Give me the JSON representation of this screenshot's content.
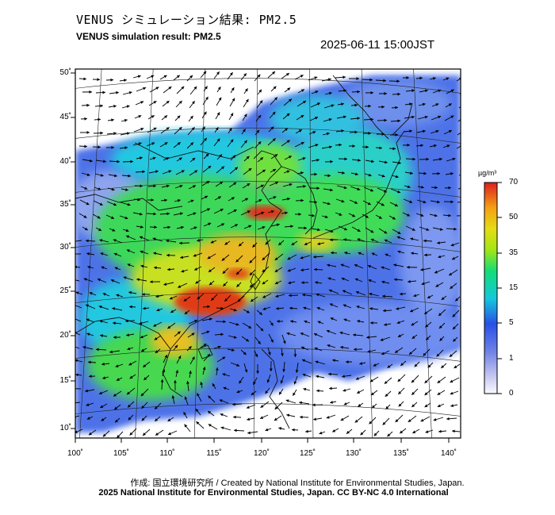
{
  "header": {
    "title_jp": "VENUS シミュレーション結果: PM2.5",
    "title_en": "VENUS simulation result: PM2.5",
    "timestamp": "2025-06-11 15:00JST"
  },
  "map": {
    "lat_labels": [
      "50˚",
      "45˚",
      "40˚",
      "35˚",
      "30˚",
      "25˚",
      "20˚",
      "15˚",
      "10˚"
    ],
    "lon_labels": [
      "100˚",
      "105˚",
      "110˚",
      "115˚",
      "120˚",
      "125˚",
      "130˚",
      "135˚",
      "140˚"
    ],
    "lat_range": [
      9,
      51
    ],
    "lon_range": [
      100,
      141
    ]
  },
  "colorbar": {
    "unit": "µg/m³",
    "labels": [
      "70",
      "50",
      "35",
      "15",
      "5",
      "1",
      "0"
    ],
    "colors": [
      "#fafaff",
      "#c8c8f0",
      "#6e82e6",
      "#2850e6",
      "#1e8cf0",
      "#14c8dc",
      "#14dc78",
      "#50e614",
      "#a0e614",
      "#e6dc14",
      "#f5a014",
      "#f05a0a",
      "#dc1e1e"
    ]
  },
  "footer": {
    "credit": "作成: 国立環境研究所 / Created by National Institute for Environmental Studies, Japan.",
    "copyright": "2025 National Institute for Environmental Studies, Japan. CC BY-NC 4.0 International"
  }
}
